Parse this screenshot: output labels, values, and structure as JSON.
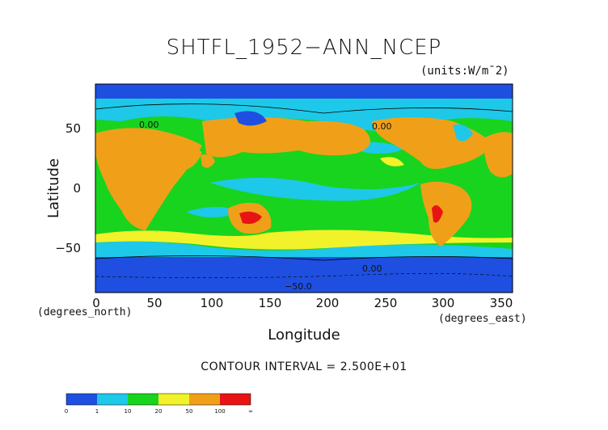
{
  "title": "SHTFL_1952−ANN_NCEP",
  "units": "(units:W/m¯2)",
  "axes": {
    "ylabel": "Latitude",
    "xlabel": "Longitude",
    "yticks": [
      "50",
      "0",
      "−50"
    ],
    "xticks": [
      "0",
      "50",
      "100",
      "150",
      "200",
      "250",
      "300",
      "350"
    ],
    "y_unit_label": "(degrees_north)",
    "x_unit_label": "(degrees_east)"
  },
  "map_labels": {
    "c1": "0.00",
    "c2": "0.00",
    "c3": "0.00",
    "c4": "−50.0"
  },
  "contour_note": "CONTOUR INTERVAL = 2.500E+01",
  "colorbar": {
    "labels": [
      "0",
      "1",
      "10",
      "20",
      "50",
      "100",
      "∞"
    ],
    "colors": [
      "#1e4fe0",
      "#1ec8e8",
      "#18d41e",
      "#f2f22a",
      "#f0a018",
      "#e81414"
    ]
  },
  "map_colors": {
    "ocean_base": "#18d41e",
    "cold": "#1e4fe0",
    "cool": "#1ec8e8",
    "warm": "#f2f22a",
    "hot": "#f0a018",
    "max": "#e81414"
  }
}
